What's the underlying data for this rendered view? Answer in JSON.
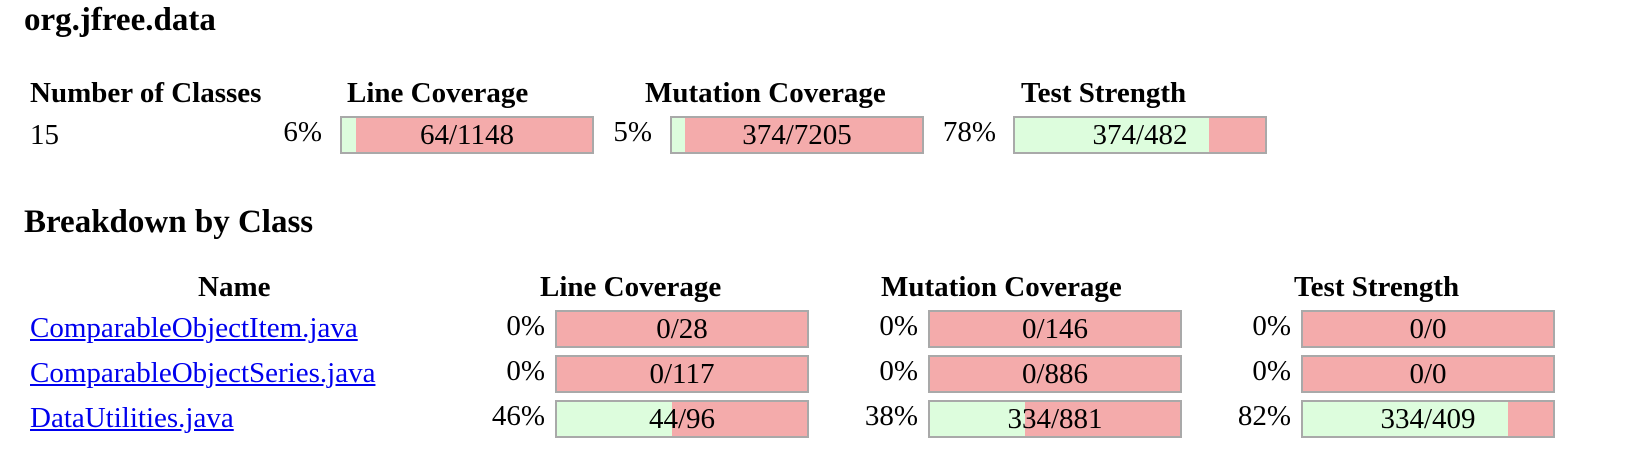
{
  "package": {
    "title": "org.jfree.data"
  },
  "summary": {
    "headers": {
      "classes": "Number of Classes",
      "line": "Line Coverage",
      "mutation": "Mutation Coverage",
      "strength": "Test Strength"
    },
    "classes_count": "15",
    "line": {
      "percent": "6%",
      "legend": "64/1148",
      "fraction": 0.056
    },
    "mutation": {
      "percent": "5%",
      "legend": "374/7205",
      "fraction": 0.052
    },
    "strength": {
      "percent": "78%",
      "legend": "374/482",
      "fraction": 0.776
    }
  },
  "breakdown": {
    "title": "Breakdown by Class",
    "headers": {
      "name": "Name",
      "line": "Line Coverage",
      "mutation": "Mutation Coverage",
      "strength": "Test Strength"
    },
    "rows": [
      {
        "name": "ComparableObjectItem.java",
        "line": {
          "percent": "0%",
          "legend": "0/28",
          "fraction": 0
        },
        "mutation": {
          "percent": "0%",
          "legend": "0/146",
          "fraction": 0
        },
        "strength": {
          "percent": "0%",
          "legend": "0/0",
          "fraction": 0
        }
      },
      {
        "name": "ComparableObjectSeries.java",
        "line": {
          "percent": "0%",
          "legend": "0/117",
          "fraction": 0
        },
        "mutation": {
          "percent": "0%",
          "legend": "0/886",
          "fraction": 0
        },
        "strength": {
          "percent": "0%",
          "legend": "0/0",
          "fraction": 0
        }
      },
      {
        "name": "DataUtilities.java",
        "line": {
          "percent": "46%",
          "legend": "44/96",
          "fraction": 0.46
        },
        "mutation": {
          "percent": "38%",
          "legend": "334/881",
          "fraction": 0.38
        },
        "strength": {
          "percent": "82%",
          "legend": "334/409",
          "fraction": 0.82
        }
      }
    ]
  },
  "colors": {
    "covered": "#ddfddd",
    "uncovered": "#f4abab",
    "link": "#0000ee"
  }
}
